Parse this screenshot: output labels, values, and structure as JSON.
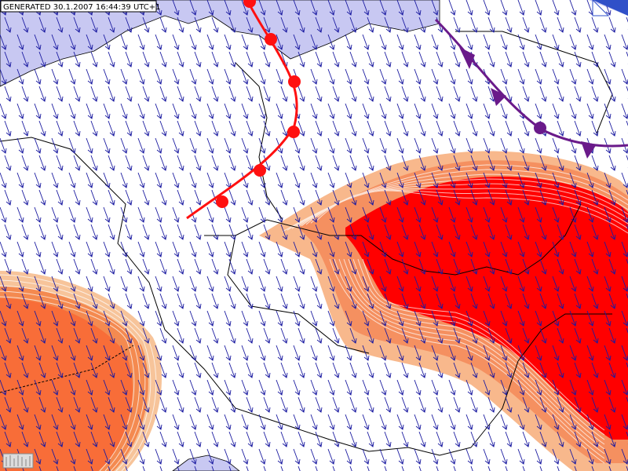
{
  "header": {
    "title": "GENERATED 30.1.2007 16:44:39 UTC+1"
  }
}
